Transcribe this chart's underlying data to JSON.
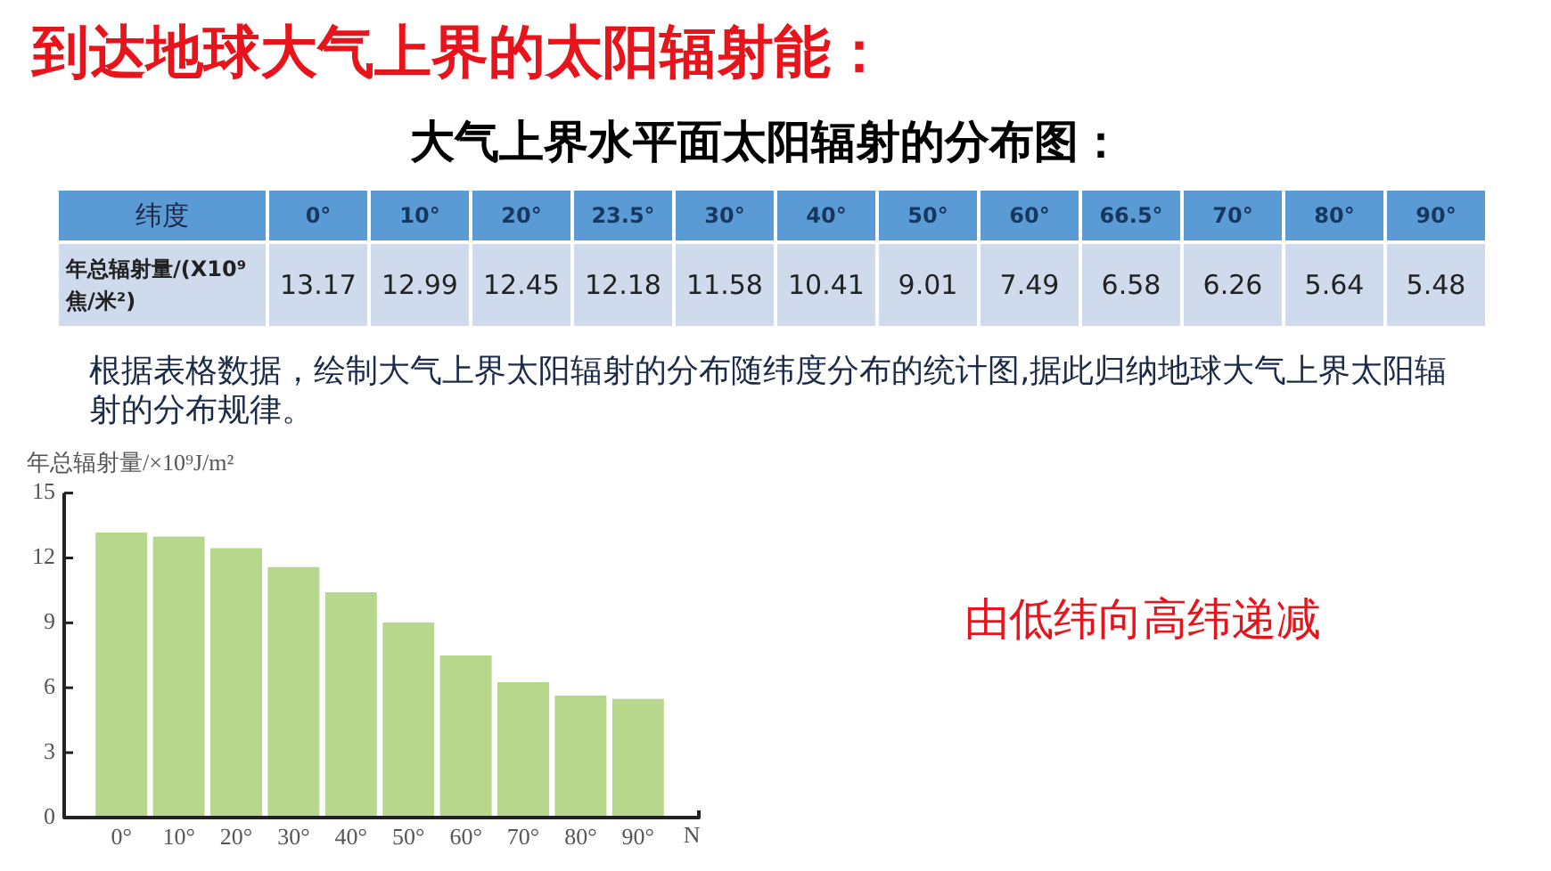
{
  "chart_data": [
    {
      "type": "heatmap",
      "title": "到达地球大气上界的太阳辐射能：",
      "subtitle": "大气上界水平面太阳辐射的分布图：",
      "xlabel": "纬度",
      "categories": [
        "0°",
        "10°",
        "20°",
        "23.5°",
        "30°",
        "40°",
        "50°",
        "60°",
        "66.5°",
        "70°",
        "80°",
        "90°"
      ],
      "y_categories": [
        "年总辐射量/(X10⁹焦/米²)"
      ],
      "cells": [
        [
          13.17,
          12.99,
          12.45,
          12.18,
          11.58,
          10.41,
          9.01,
          7.49,
          6.58,
          6.26,
          5.64,
          5.48
        ]
      ],
      "color": "#cfdaed",
      "data_labels": true,
      "annotations": [
        "根据表格数据，绘制大气上界太阳辐射的分布随纬度分布的统计图,据此归纳地球大气上界太阳辐射的分布规律。"
      ]
    },
    {
      "type": "bar",
      "ylabel": "年总辐射量/×10⁹J/m²",
      "xlabel": "N",
      "categories": [
        "0°",
        "10°",
        "20°",
        "30°",
        "40°",
        "50°",
        "60°",
        "70°",
        "80°",
        "90°"
      ],
      "values": [
        13.17,
        12.99,
        12.45,
        11.58,
        10.41,
        9.01,
        7.49,
        6.26,
        5.64,
        5.48
      ],
      "color": "#b7d88c",
      "ylim": [
        0,
        15
      ],
      "yticks": [
        0,
        3,
        6,
        9,
        12,
        15
      ],
      "annotations": [
        "由低纬向高纬递减"
      ]
    }
  ]
}
